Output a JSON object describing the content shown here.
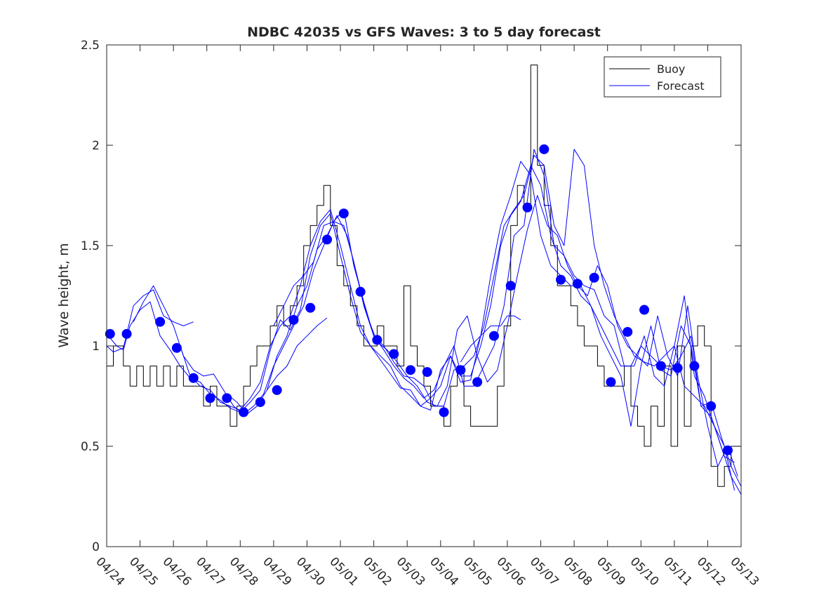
{
  "chart_data": {
    "type": "line",
    "title": "NDBC 42035 vs GFS Waves: 3 to 5 day forecast",
    "xlabel": "",
    "ylabel": "Wave height, m",
    "xlim": [
      0,
      19
    ],
    "ylim": [
      0,
      2.5
    ],
    "x_tick_labels": [
      "04/24",
      "04/25",
      "04/26",
      "04/27",
      "04/28",
      "04/29",
      "04/30",
      "05/01",
      "05/02",
      "05/03",
      "05/04",
      "05/05",
      "05/06",
      "05/07",
      "05/08",
      "05/09",
      "05/10",
      "05/11",
      "05/12",
      "05/13"
    ],
    "y_ticks": [
      0,
      0.5,
      1,
      1.5,
      2,
      2.5
    ],
    "y_tick_labels": [
      "0",
      "0.5",
      "1",
      "1.5",
      "2",
      "2.5"
    ],
    "legend": {
      "placement": "top-right",
      "entries": [
        "Buoy",
        "Forecast"
      ]
    },
    "colors": {
      "buoy": "#000000",
      "forecast": "#0000ff",
      "axes": "#262626"
    },
    "series": [
      {
        "name": "Buoy",
        "style": "step",
        "x": [
          0,
          0.2,
          0.5,
          0.7,
          0.9,
          1.1,
          1.3,
          1.5,
          1.7,
          1.9,
          2.1,
          2.3,
          2.5,
          2.7,
          2.9,
          3.1,
          3.3,
          3.5,
          3.7,
          3.9,
          4.1,
          4.3,
          4.5,
          4.7,
          4.9,
          5.1,
          5.3,
          5.5,
          5.7,
          5.9,
          6.1,
          6.3,
          6.5,
          6.7,
          6.9,
          7.1,
          7.3,
          7.5,
          7.7,
          7.9,
          8.1,
          8.3,
          8.5,
          8.7,
          8.9,
          9.1,
          9.3,
          9.5,
          9.7,
          9.9,
          10.1,
          10.3,
          10.5,
          10.7,
          10.9,
          11.1,
          11.3,
          11.5,
          11.7,
          11.9,
          12.1,
          12.3,
          12.5,
          12.7,
          12.9,
          13.1,
          13.3,
          13.5,
          13.7,
          13.9,
          14.1,
          14.3,
          14.5,
          14.7,
          14.9,
          15.1,
          15.3,
          15.5,
          15.7,
          15.9,
          16.1,
          16.3,
          16.5,
          16.7,
          16.9,
          17.1,
          17.3,
          17.5,
          17.7,
          17.9,
          18.1,
          18.3,
          18.5,
          18.7,
          18.9
        ],
        "values": [
          0.9,
          1.0,
          0.9,
          0.8,
          0.9,
          0.8,
          0.9,
          0.8,
          0.9,
          0.8,
          0.9,
          0.8,
          0.8,
          0.8,
          0.7,
          0.8,
          0.7,
          0.7,
          0.6,
          0.7,
          0.8,
          0.9,
          1.0,
          1.0,
          1.1,
          1.2,
          1.1,
          1.2,
          1.3,
          1.5,
          1.6,
          1.7,
          1.8,
          1.6,
          1.4,
          1.3,
          1.2,
          1.1,
          1.0,
          1.0,
          1.1,
          1.0,
          1.0,
          0.9,
          1.3,
          1.0,
          0.9,
          0.8,
          0.7,
          0.7,
          0.6,
          0.8,
          0.9,
          0.7,
          0.6,
          0.6,
          0.6,
          0.6,
          0.8,
          1.1,
          1.6,
          1.8,
          1.7,
          2.4,
          1.9,
          1.7,
          1.5,
          1.3,
          1.3,
          1.2,
          1.1,
          1.0,
          1.0,
          0.9,
          0.8,
          0.8,
          0.8,
          0.9,
          0.7,
          0.6,
          0.5,
          0.7,
          0.6,
          0.9,
          0.5,
          1.0,
          0.6,
          1.0,
          1.1,
          1.0,
          0.4,
          0.3,
          0.4,
          0.5,
          0.5
        ]
      },
      {
        "name": "Forecast",
        "x": [
          0,
          0.3,
          0.5,
          0.7,
          1.0,
          1.3,
          1.6,
          1.9,
          2.2,
          2.5,
          2.8,
          3.1,
          3.4,
          3.7,
          4.0,
          4.3,
          4.6,
          4.9,
          5.2,
          5.5,
          5.8,
          6.1,
          6.4,
          6.7,
          7.0,
          7.3,
          7.6,
          7.9,
          8.2,
          8.5,
          8.8,
          9.1,
          9.4,
          9.7,
          10.0,
          10.3,
          10.6,
          10.9,
          11.2,
          11.5,
          11.8,
          12.1,
          12.4,
          12.7,
          13.0,
          13.3,
          13.6,
          13.9,
          14.2,
          14.5,
          14.8,
          15.1,
          15.4,
          15.7,
          16.0,
          16.3,
          16.6,
          16.9,
          17.2,
          17.5,
          17.8,
          18.1,
          18.4,
          18.7,
          19.0
        ],
        "values": [
          1.06,
          1.0,
          0.98,
          1.1,
          1.18,
          1.22,
          1.05,
          0.98,
          0.9,
          0.84,
          0.82,
          0.76,
          0.73,
          0.69,
          0.67,
          0.72,
          0.78,
          0.98,
          1.13,
          1.08,
          1.18,
          1.45,
          1.6,
          1.66,
          1.45,
          1.25,
          1.07,
          1.0,
          0.93,
          0.86,
          0.79,
          0.78,
          0.7,
          0.68,
          0.88,
          0.95,
          0.82,
          0.83,
          1.05,
          1.35,
          1.6,
          1.75,
          1.92,
          1.85,
          1.55,
          1.4,
          1.35,
          1.3,
          1.3,
          1.2,
          1.05,
          0.95,
          0.85,
          0.6,
          0.9,
          1.1,
          0.88,
          0.85,
          1.1,
          1.0,
          0.7,
          0.72,
          0.55,
          0.4,
          0.3
        ]
      },
      {
        "name": "Forecast",
        "x": [
          0.8,
          1.1,
          1.4,
          1.7,
          2.0,
          2.3,
          2.6,
          2.9,
          3.2,
          3.5,
          3.8,
          4.1,
          4.4,
          4.7,
          5.0,
          5.3,
          5.6,
          5.9,
          6.2,
          6.5,
          6.8,
          7.1,
          7.4,
          7.7,
          8.0,
          8.3,
          8.6,
          8.9,
          9.2,
          9.5,
          9.8,
          10.1,
          10.4,
          10.7,
          11.0,
          11.3,
          11.6,
          11.9,
          12.2,
          12.5,
          12.8,
          13.1,
          13.4,
          13.7,
          14.0,
          14.3,
          14.6,
          14.9,
          15.2,
          15.5,
          15.8,
          16.1,
          16.4,
          16.7,
          17.0,
          17.3,
          17.6,
          17.9,
          18.2,
          18.5,
          18.8
        ],
        "values": [
          1.12,
          1.22,
          1.3,
          1.2,
          1.1,
          0.95,
          0.88,
          0.85,
          0.86,
          0.78,
          0.7,
          0.66,
          0.7,
          0.76,
          0.9,
          1.0,
          1.1,
          1.2,
          1.38,
          1.5,
          1.62,
          1.6,
          1.42,
          1.2,
          1.05,
          0.98,
          0.9,
          0.84,
          0.8,
          0.74,
          0.78,
          0.9,
          1.0,
          0.8,
          0.8,
          0.9,
          1.0,
          1.2,
          1.55,
          1.6,
          1.98,
          1.85,
          1.5,
          1.45,
          1.35,
          1.3,
          1.28,
          1.15,
          1.1,
          0.9,
          0.9,
          1.05,
          0.85,
          0.8,
          1.0,
          1.25,
          0.85,
          0.75,
          0.6,
          0.5,
          0.28
        ]
      },
      {
        "name": "Forecast",
        "x": [
          2.2,
          2.5,
          2.8,
          3.1,
          3.4,
          3.7,
          4.0,
          4.3,
          4.6,
          4.9,
          5.2,
          5.5,
          5.8,
          6.1,
          6.4,
          6.7,
          7.0,
          7.3,
          7.6,
          7.9,
          8.2,
          8.5,
          8.8,
          9.1,
          9.4,
          9.7,
          10.0,
          10.3,
          10.6,
          10.9,
          11.2,
          11.5,
          11.8,
          12.1,
          12.4,
          12.7,
          13.0,
          13.3,
          13.6,
          13.9,
          14.2,
          14.5,
          14.8,
          15.1,
          15.4,
          15.7,
          16.0,
          16.3,
          16.6,
          16.9,
          17.2,
          17.5,
          17.8,
          18.1,
          18.4,
          18.7,
          19.0
        ],
        "values": [
          1.0,
          0.85,
          0.8,
          0.78,
          0.72,
          0.7,
          0.68,
          0.74,
          0.82,
          1.0,
          1.1,
          1.15,
          1.3,
          1.5,
          1.62,
          1.68,
          1.5,
          1.3,
          1.1,
          1.0,
          0.95,
          0.9,
          0.8,
          0.75,
          0.7,
          0.74,
          0.8,
          0.95,
          0.85,
          0.85,
          1.0,
          1.2,
          1.5,
          1.65,
          1.72,
          1.9,
          1.8,
          1.55,
          1.4,
          1.35,
          1.25,
          1.2,
          1.1,
          1.0,
          0.9,
          0.9,
          1.0,
          0.95,
          0.9,
          0.88,
          0.95,
          1.05,
          0.7,
          0.65,
          0.5,
          0.35,
          0.26
        ]
      },
      {
        "name": "Forecast",
        "x": [
          3.6,
          3.9,
          4.2,
          4.5,
          4.8,
          5.1,
          5.4,
          5.7,
          6.0,
          6.3,
          6.6,
          6.9,
          7.2,
          7.5,
          7.8,
          8.1,
          8.4,
          8.7,
          9.0,
          9.3,
          9.6,
          9.9,
          10.2,
          10.5,
          10.8,
          11.1,
          11.4,
          11.7,
          12.0,
          12.3,
          12.6,
          12.9,
          13.2,
          13.5,
          13.8,
          14.1,
          14.4,
          14.7,
          15.0,
          15.3,
          15.6,
          15.9,
          16.2,
          16.5,
          16.8,
          17.1,
          17.4,
          17.7,
          18.0,
          18.3,
          18.6,
          18.9
        ],
        "values": [
          0.76,
          0.72,
          0.66,
          0.7,
          0.78,
          0.95,
          1.05,
          1.2,
          1.3,
          1.48,
          1.55,
          1.65,
          1.55,
          1.35,
          1.15,
          1.02,
          0.98,
          0.92,
          0.85,
          0.8,
          0.72,
          0.7,
          0.8,
          1.08,
          1.15,
          0.95,
          0.82,
          0.88,
          1.1,
          1.35,
          1.58,
          1.75,
          1.6,
          1.55,
          1.4,
          1.3,
          1.25,
          1.4,
          1.3,
          1.1,
          1.0,
          0.95,
          0.9,
          1.15,
          0.95,
          0.85,
          1.2,
          0.85,
          0.6,
          0.4,
          0.5,
          0.35
        ]
      },
      {
        "name": "Forecast",
        "x": [
          5.0,
          5.3,
          5.6,
          5.9,
          6.2,
          6.5,
          6.8,
          7.1,
          7.4,
          7.7,
          8.0,
          8.3,
          8.6,
          8.9,
          9.2,
          9.5,
          9.8,
          10.1,
          10.4,
          10.7,
          11.0,
          11.3,
          11.6,
          11.9,
          12.2,
          12.5,
          12.8,
          13.1,
          13.4,
          13.7,
          14.0,
          14.3,
          14.6,
          14.9,
          15.2,
          15.5,
          15.8,
          16.1,
          16.4,
          16.7,
          17.0,
          17.3,
          17.6,
          17.9,
          18.2,
          18.5,
          18.8
        ],
        "values": [
          1.1,
          1.2,
          1.3,
          1.35,
          1.42,
          1.6,
          1.62,
          1.68,
          1.4,
          1.22,
          1.05,
          1.0,
          0.92,
          0.85,
          0.84,
          0.8,
          0.7,
          0.7,
          0.88,
          0.9,
          0.95,
          1.1,
          1.35,
          1.6,
          1.68,
          1.75,
          1.95,
          1.9,
          1.6,
          1.5,
          1.98,
          1.9,
          1.5,
          1.3,
          1.15,
          1.05,
          0.95,
          0.92,
          0.9,
          0.95,
          1.0,
          0.8,
          0.75,
          0.7,
          0.6,
          0.45,
          0.42
        ]
      },
      {
        "name": "Forecast",
        "x": [
          0,
          0.2,
          0.5,
          0.8,
          1.1,
          1.4,
          1.7,
          2.0,
          2.3,
          2.6
        ],
        "values": [
          1.0,
          0.97,
          0.99,
          1.2,
          1.25,
          1.28,
          1.15,
          1.12,
          1.1,
          1.12
        ]
      },
      {
        "name": "Forecast",
        "x": [
          4.8,
          5.1,
          5.4,
          5.7,
          6.0,
          6.3,
          6.6
        ],
        "values": [
          0.78,
          0.85,
          0.9,
          1.0,
          1.05,
          1.1,
          1.14
        ]
      },
      {
        "name": "Forecast",
        "x": [
          10.6,
          10.9,
          11.2,
          11.5,
          11.8,
          12.0,
          12.2,
          12.4
        ],
        "values": [
          0.92,
          1.0,
          1.05,
          1.1,
          1.1,
          1.15,
          1.15,
          1.13
        ]
      },
      {
        "name": "Forecast",
        "style": "markers",
        "x": [
          0.1,
          0.6,
          1.6,
          2.1,
          2.6,
          3.1,
          3.6,
          4.1,
          4.6,
          5.1,
          5.6,
          6.1,
          6.6,
          7.1,
          7.6,
          8.1,
          8.6,
          9.1,
          9.6,
          10.1,
          10.6,
          11.1,
          11.6,
          12.1,
          12.6,
          13.1,
          13.6,
          14.1,
          14.6,
          15.1,
          15.6,
          16.1,
          16.6,
          17.1,
          17.6,
          18.1,
          18.6
        ],
        "values": [
          1.06,
          1.06,
          1.12,
          0.99,
          0.84,
          0.74,
          0.74,
          0.67,
          0.72,
          0.78,
          1.13,
          1.19,
          1.53,
          1.66,
          1.27,
          1.03,
          0.96,
          0.88,
          0.87,
          0.67,
          0.88,
          0.82,
          1.05,
          1.3,
          1.69,
          1.98,
          1.33,
          1.31,
          1.34,
          0.82,
          1.07,
          1.18,
          0.9,
          0.89,
          0.9,
          0.7,
          0.48
        ]
      }
    ]
  }
}
